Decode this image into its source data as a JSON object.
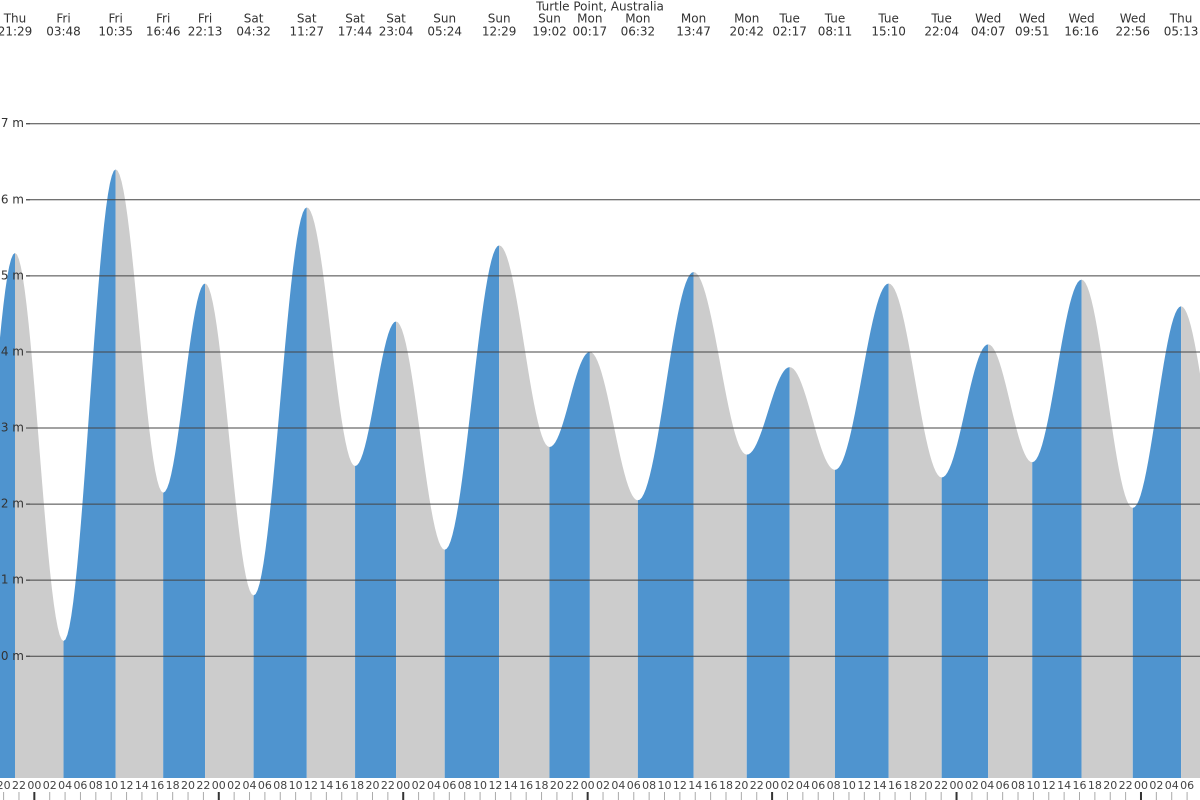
{
  "chart_data": {
    "type": "tide",
    "title": "Turtle Point, Australia",
    "days": [
      "Thu",
      "Fri",
      "Fri",
      "Fri",
      "Fri",
      "Sat",
      "Sat",
      "Sat",
      "Sat",
      "Sun",
      "Sun",
      "Sun",
      "Mon",
      "Mon",
      "Mon",
      "Mon",
      "Tue",
      "Tue",
      "Tue",
      "Tue",
      "Wed",
      "Wed",
      "Wed",
      "Wed",
      "Thu"
    ],
    "times": [
      "21:29",
      "03:48",
      "10:35",
      "16:46",
      "22:13",
      "04:32",
      "11:27",
      "17:44",
      "23:04",
      "05:24",
      "12:29",
      "19:02",
      "00:17",
      "06:32",
      "13:47",
      "20:42",
      "02:17",
      "08:11",
      "15:10",
      "22:04",
      "04:07",
      "09:51",
      "16:16",
      "22:56",
      "05:13"
    ],
    "values": [
      5.3,
      0.2,
      6.4,
      2.15,
      4.9,
      0.8,
      5.9,
      2.5,
      4.4,
      1.4,
      5.4,
      2.75,
      4.0,
      2.05,
      5.05,
      2.65,
      3.8,
      2.45,
      4.9,
      2.35,
      4.1,
      2.55,
      4.95,
      1.95,
      4.6
    ],
    "rising_color": "#4f94cf",
    "falling_color": "#cccccc",
    "ylim": [
      -1.6,
      8.1
    ],
    "yticks": [
      {
        "value": 0,
        "label": "0 m"
      },
      {
        "value": 1,
        "label": "1 m"
      },
      {
        "value": 2,
        "label": "2 m"
      },
      {
        "value": 3,
        "label": "3 m"
      },
      {
        "value": 4,
        "label": "4 m"
      },
      {
        "value": 5,
        "label": "5 m"
      },
      {
        "value": 6,
        "label": "6 m"
      },
      {
        "value": 7,
        "label": "7 m"
      }
    ],
    "grid": true,
    "hour_labels": [
      "20",
      "22",
      "00",
      "02",
      "04",
      "06",
      "08",
      "10",
      "12",
      "14",
      "16",
      "18",
      "20",
      "22",
      "00",
      "02",
      "04",
      "06",
      "08",
      "10",
      "12",
      "14",
      "16",
      "18",
      "20",
      "22",
      "00",
      "02",
      "04",
      "06",
      "08",
      "10",
      "12",
      "14",
      "16",
      "18",
      "20",
      "22",
      "00",
      "02",
      "04",
      "06",
      "08",
      "10",
      "12",
      "14",
      "16",
      "18",
      "20",
      "22",
      "00",
      "02",
      "04",
      "06",
      "08",
      "10",
      "12",
      "14",
      "16",
      "18",
      "20",
      "22",
      "00",
      "02",
      "04",
      "06",
      "08",
      "10",
      "12",
      "14",
      "16",
      "18",
      "20",
      "22",
      "00",
      "02",
      "04",
      "06"
    ]
  }
}
